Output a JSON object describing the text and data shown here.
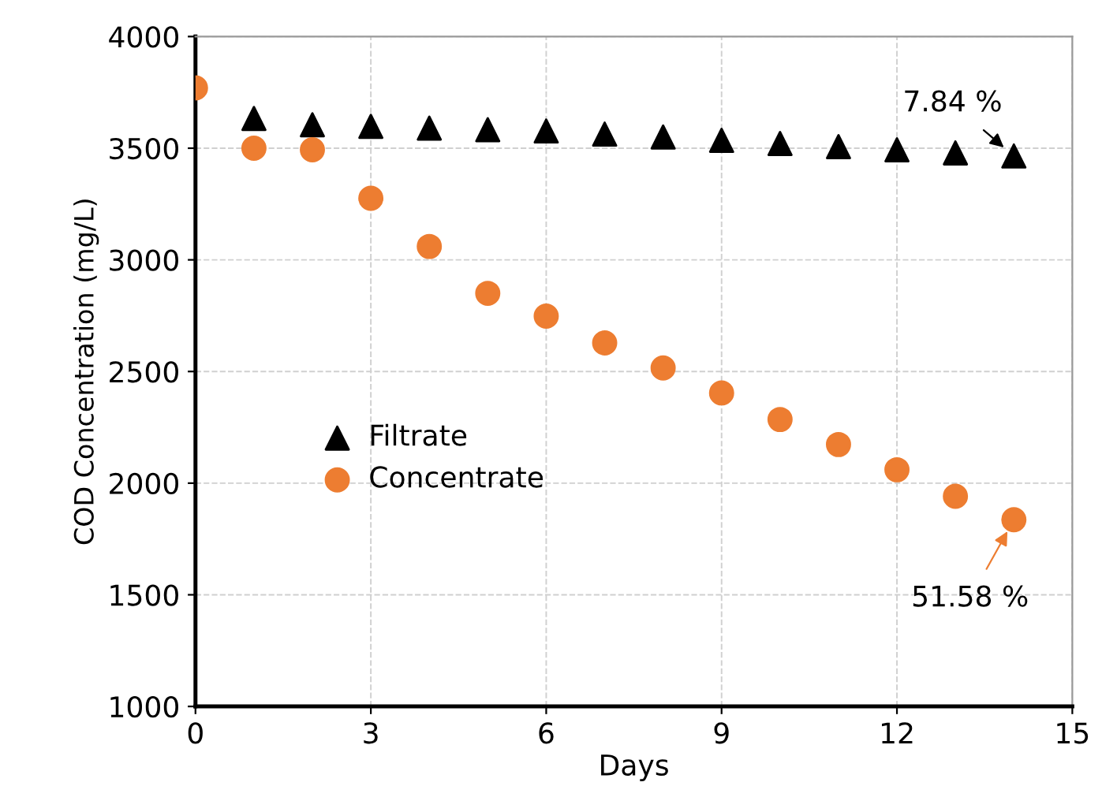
{
  "chart_data": {
    "type": "scatter",
    "xlabel": "Days",
    "ylabel": "COD Concentration (mg/L)",
    "x": [
      0,
      1,
      2,
      3,
      4,
      5,
      6,
      7,
      8,
      9,
      10,
      11,
      12,
      13,
      14
    ],
    "series": [
      {
        "name": "Filtrate",
        "color": "#000000",
        "marker": "triangle",
        "values": [
          null,
          3633,
          3605,
          3598,
          3590,
          3583,
          3577,
          3563,
          3550,
          3535,
          3521,
          3507,
          3493,
          3479,
          3465
        ]
      },
      {
        "name": "Concentrate",
        "color": "#ed7d31",
        "marker": "circle",
        "values": [
          3770,
          3500,
          3493,
          3276,
          3060,
          2850,
          2748,
          2628,
          2516,
          2404,
          2285,
          2173,
          2060,
          1941,
          1836
        ]
      }
    ],
    "annotations": [
      {
        "text": "7.84 %",
        "x": 14,
        "y": 3465
      },
      {
        "text": "51.58 %",
        "x": 14,
        "y": 1836
      }
    ],
    "xlim": [
      0,
      15
    ],
    "xticks": [
      0,
      3,
      6,
      9,
      12,
      15
    ],
    "ylim": [
      1000,
      4000
    ],
    "yticks": [
      1000,
      1500,
      2000,
      2500,
      3000,
      3500,
      4000
    ],
    "grid": true,
    "legend": "center left"
  }
}
